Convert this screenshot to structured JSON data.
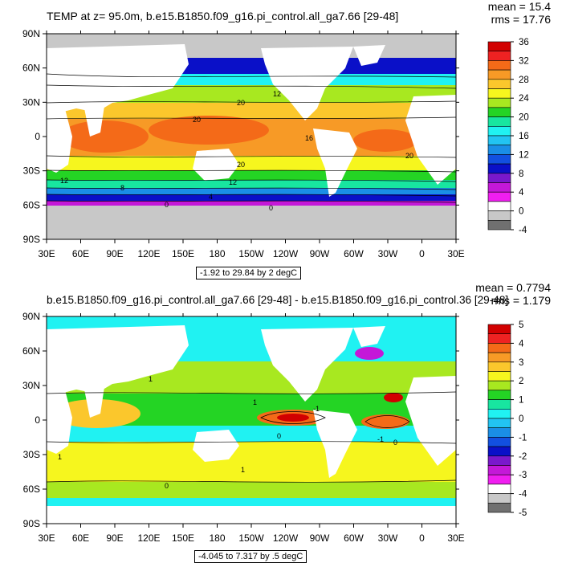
{
  "chart_data": [
    {
      "type": "heatmap",
      "title": "TEMP at z=  95.0m, b.e15.B1850.f09_g16.pi_control.all_ga7.66 [29-48]",
      "stats": {
        "mean": "mean = 15.4",
        "rms": "rms = 17.76"
      },
      "range_label": "-1.92 to 29.84 by 2 degC",
      "x_ticks": [
        "30E",
        "60E",
        "90E",
        "120E",
        "150E",
        "180",
        "150W",
        "120W",
        "90W",
        "60W",
        "30W",
        "0",
        "30E"
      ],
      "y_ticks": [
        "90N",
        "60N",
        "30N",
        "0",
        "30S",
        "60S",
        "90S"
      ],
      "colorbar": {
        "labels": [
          "36",
          "32",
          "28",
          "24",
          "20",
          "16",
          "12",
          "8",
          "4",
          "0",
          "-4"
        ],
        "colors": [
          "#d20000",
          "#ee2222",
          "#f46a18",
          "#f79a26",
          "#fbc72c",
          "#f6f61e",
          "#a8e820",
          "#24d424",
          "#18e6a0",
          "#20f2f2",
          "#22c4f2",
          "#1a8ee6",
          "#1250e0",
          "#0a10c8",
          "#7a18cc",
          "#c418d8",
          "#f01ef0",
          "#ffffff",
          "#c8c8c8",
          "#707070"
        ]
      },
      "contour_labels": [
        "20",
        "12",
        "20",
        "20",
        "16",
        "20",
        "12",
        "8",
        "12",
        "4",
        "0",
        "0"
      ]
    },
    {
      "type": "heatmap",
      "title": "b.e15.B1850.f09_g16.pi_control.all_ga7.66 [29-48] - b.e15.B1850.f09_g16.pi_control.36 [29-48]",
      "stats": {
        "mean": "mean = 0.7794",
        "rms": "rms = 1.179"
      },
      "range_label": "-4.045 to 7.317 by .5 degC",
      "x_ticks": [
        "30E",
        "60E",
        "90E",
        "120E",
        "150E",
        "180",
        "150W",
        "120W",
        "90W",
        "60W",
        "30W",
        "0",
        "30E"
      ],
      "y_ticks": [
        "90N",
        "60N",
        "30N",
        "0",
        "30S",
        "60S",
        "90S"
      ],
      "colorbar": {
        "labels": [
          "5",
          "4",
          "3",
          "2",
          "1",
          "0",
          "-1",
          "-2",
          "-3",
          "-4",
          "-5"
        ],
        "colors": [
          "#d20000",
          "#ee2222",
          "#f46a18",
          "#f79a26",
          "#fbc72c",
          "#f6f61e",
          "#a8e820",
          "#24d424",
          "#18e6a0",
          "#20f2f2",
          "#22c4f2",
          "#1a8ee6",
          "#1250e0",
          "#0a10c8",
          "#7a18cc",
          "#c418d8",
          "#f01ef0",
          "#ffffff",
          "#c8c8c8",
          "#707070"
        ]
      },
      "contour_labels": [
        "1",
        "0",
        "0",
        "1",
        "1",
        "-1",
        "0",
        "-1",
        "1"
      ]
    }
  ]
}
